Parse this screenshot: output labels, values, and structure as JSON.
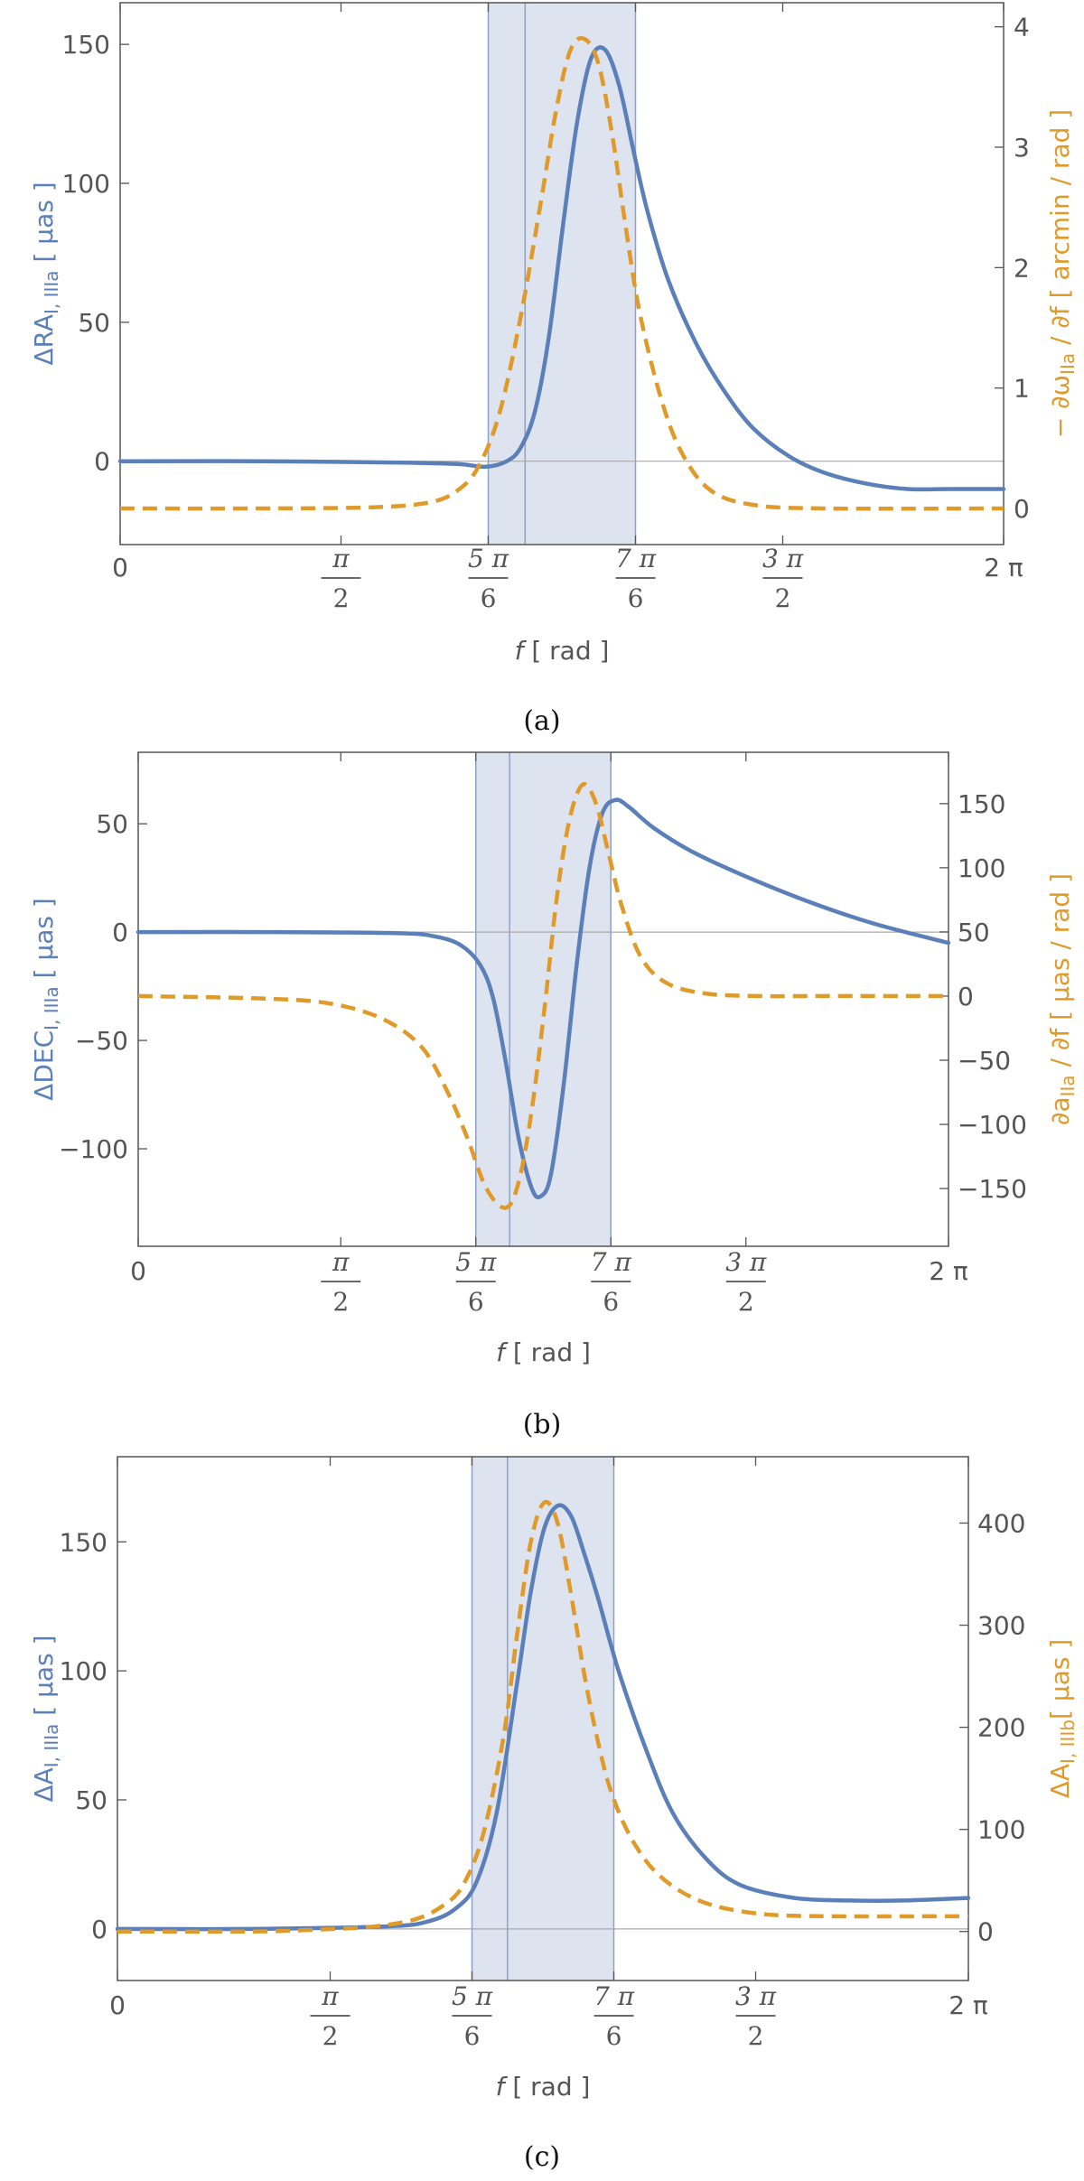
{
  "colors": {
    "blue": "#5b7fb9",
    "orange": "#e09a2a",
    "shade": "#dde3ef",
    "shade_edge": "#8ea2c8",
    "axis": "#555555",
    "zero_line": "#a9a9a9"
  },
  "x_ticks": [
    {
      "kind": "plain",
      "text": "0",
      "value": 0
    },
    {
      "kind": "frac",
      "num": "π",
      "den": "2",
      "value": 1.5708
    },
    {
      "kind": "frac",
      "num": "5 π",
      "den": "6",
      "value": 2.618
    },
    {
      "kind": "frac",
      "num": "7 π",
      "den": "6",
      "value": 3.6652
    },
    {
      "kind": "frac",
      "num": "3 π",
      "den": "2",
      "value": 4.7124
    },
    {
      "kind": "plain",
      "text": "2 π",
      "value": 6.2832
    }
  ],
  "chart_data": [
    {
      "type": "line",
      "panel_caption": "(a)",
      "xlabel": "f [ rad ]",
      "xlim": [
        0,
        6.2832
      ],
      "shaded_region": [
        2.618,
        3.6652
      ],
      "vertical_line_x": 2.88,
      "ylabel_left": "ΔRA",
      "ylabel_left_sub": "I, IIIa",
      "ylabel_left_unit": "[ μas ]",
      "ylabel_right": "− ∂ω",
      "ylabel_right_sub": "IIa",
      "ylabel_right_unit": " / ∂f [ arcmin / rad ]",
      "ylim_left": [
        -30,
        165
      ],
      "yticks_left": [
        0,
        50,
        100,
        150
      ],
      "ylim_right": [
        -0.3,
        4.2
      ],
      "yticks_right": [
        0,
        1,
        2,
        3,
        4
      ],
      "series": [
        {
          "axis": "left",
          "style": "solid",
          "x": [
            0,
            1.0,
            2.0,
            2.4,
            2.6,
            2.75,
            2.85,
            2.95,
            3.05,
            3.15,
            3.25,
            3.35,
            3.45,
            3.55,
            3.65,
            3.75,
            3.9,
            4.1,
            4.3,
            4.5,
            4.75,
            5.0,
            5.3,
            5.6,
            5.9,
            6.2832
          ],
          "y": [
            0,
            0,
            -0.5,
            -1,
            -2,
            0,
            5,
            18,
            45,
            85,
            122,
            145,
            148,
            135,
            112,
            90,
            65,
            42,
            25,
            12,
            2,
            -4,
            -8,
            -10,
            -10,
            -10
          ]
        },
        {
          "axis": "right",
          "style": "dashed",
          "x": [
            0,
            1.0,
            1.8,
            2.2,
            2.4,
            2.55,
            2.7,
            2.85,
            3.0,
            3.1,
            3.2,
            3.3,
            3.4,
            3.5,
            3.6,
            3.7,
            3.85,
            4.0,
            4.2,
            4.5,
            5.0,
            6.2832
          ],
          "y": [
            0,
            0,
            0.01,
            0.05,
            0.15,
            0.35,
            0.8,
            1.6,
            2.6,
            3.3,
            3.8,
            3.9,
            3.7,
            3.1,
            2.3,
            1.6,
            0.9,
            0.45,
            0.15,
            0.03,
            0,
            0
          ]
        }
      ]
    },
    {
      "type": "line",
      "panel_caption": "(b)",
      "xlabel": "f [ rad ]",
      "xlim": [
        0,
        6.2832
      ],
      "shaded_region": [
        2.618,
        3.6652
      ],
      "vertical_line_x": 2.88,
      "ylabel_left": "ΔDEC",
      "ylabel_left_sub": "I, IIIa",
      "ylabel_left_unit": "[ μas ]",
      "ylabel_right": "∂a",
      "ylabel_right_sub": "IIa",
      "ylabel_right_unit": " / ∂f [ μas / rad ]",
      "ylim_left": [
        -145,
        83
      ],
      "yticks_left": [
        -100,
        -50,
        0,
        50
      ],
      "ylim_right": [
        -195,
        190
      ],
      "yticks_right": [
        -150,
        -100,
        -50,
        0,
        50,
        100,
        150
      ],
      "series": [
        {
          "axis": "left",
          "style": "solid",
          "x": [
            0,
            1.0,
            2.0,
            2.3,
            2.5,
            2.65,
            2.75,
            2.85,
            2.95,
            3.05,
            3.12,
            3.2,
            3.3,
            3.4,
            3.5,
            3.6,
            3.7,
            3.8,
            4.0,
            4.3,
            4.7,
            5.2,
            5.7,
            6.2832
          ],
          "y": [
            0,
            0,
            -0.5,
            -2,
            -6,
            -15,
            -30,
            -60,
            -95,
            -118,
            -122,
            -112,
            -70,
            -15,
            30,
            55,
            61,
            58,
            48,
            37,
            26,
            14,
            4,
            -5
          ]
        },
        {
          "axis": "right",
          "style": "dashed",
          "x": [
            0,
            1.0,
            1.5,
            1.9,
            2.2,
            2.4,
            2.55,
            2.7,
            2.85,
            2.95,
            3.05,
            3.15,
            3.25,
            3.35,
            3.45,
            3.55,
            3.65,
            3.75,
            3.9,
            4.1,
            4.4,
            4.8,
            5.3,
            6.2832
          ],
          "y": [
            0,
            -2,
            -6,
            -18,
            -40,
            -75,
            -110,
            -150,
            -165,
            -145,
            -90,
            -10,
            80,
            140,
            165,
            150,
            110,
            70,
            30,
            10,
            2,
            0,
            0,
            0
          ]
        }
      ]
    },
    {
      "type": "line",
      "panel_caption": "(c)",
      "xlabel": "f [ rad ]",
      "xlim": [
        0,
        6.2832
      ],
      "shaded_region": [
        2.618,
        3.6652
      ],
      "vertical_line_x": 2.88,
      "ylabel_left": "ΔA",
      "ylabel_left_sub": "I, IIIa",
      "ylabel_left_unit": "[ μas ]",
      "ylabel_right": "ΔA",
      "ylabel_right_sub": "I, IIIb",
      "ylabel_right_unit": "[ μas ]",
      "ylim_left": [
        -20,
        183
      ],
      "yticks_left": [
        0,
        50,
        100,
        150
      ],
      "ylim_right": [
        -48,
        465
      ],
      "yticks_right": [
        0,
        100,
        200,
        300,
        400
      ],
      "series": [
        {
          "axis": "left",
          "style": "solid",
          "x": [
            0,
            1.0,
            2.0,
            2.3,
            2.5,
            2.65,
            2.8,
            2.95,
            3.05,
            3.15,
            3.25,
            3.35,
            3.45,
            3.55,
            3.7,
            3.9,
            4.1,
            4.35,
            4.6,
            5.0,
            5.4,
            5.8,
            6.2832
          ],
          "y": [
            0,
            0,
            1,
            3,
            8,
            18,
            45,
            95,
            130,
            155,
            164,
            160,
            145,
            128,
            100,
            70,
            45,
            27,
            17,
            12,
            11,
            11,
            12
          ]
        },
        {
          "axis": "right",
          "style": "dashed",
          "x": [
            0,
            1.0,
            1.5,
            1.9,
            2.2,
            2.4,
            2.55,
            2.7,
            2.85,
            2.95,
            3.05,
            3.15,
            3.25,
            3.35,
            3.45,
            3.55,
            3.65,
            3.8,
            4.0,
            4.3,
            4.7,
            5.2,
            6.2832
          ],
          "y": [
            0,
            0,
            2,
            5,
            12,
            25,
            45,
            95,
            190,
            290,
            380,
            420,
            400,
            330,
            250,
            185,
            135,
            90,
            55,
            30,
            18,
            15,
            15
          ]
        }
      ]
    }
  ]
}
